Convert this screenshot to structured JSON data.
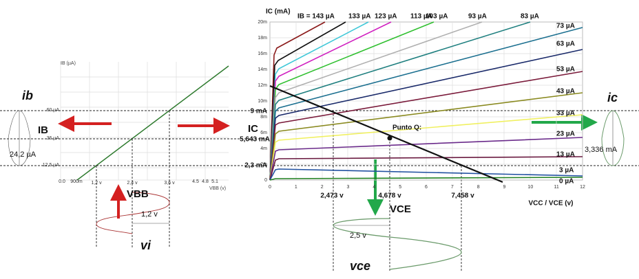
{
  "input_graph": {
    "y_axis_label": "IB (µA)",
    "x_axis_label": "VBB (v)",
    "x_ticks": [
      "0.0",
      "900m",
      "1,2 v",
      "2,4 v",
      "3,6 v",
      "4.5",
      "4.8",
      "5.1"
    ],
    "y_levels": [
      "60 µA",
      "36 µA",
      "12,5 µA"
    ]
  },
  "input_annotations": {
    "ib": "ib",
    "IB": "IB",
    "ib_amplitude": "24,2 µA",
    "VBB": "VBB",
    "vi_amplitude": "1,2 v",
    "vi": "vi"
  },
  "output_graph": {
    "y_axis_label": "IC (mA)",
    "x_axis_label": "VCC / VCE (v)",
    "y_ticks": [
      "20m",
      "18m",
      "16m",
      "14m",
      "12m",
      "10m",
      "8m",
      "6m",
      "4m",
      "2m",
      "0"
    ],
    "x_ticks": [
      "0",
      "1",
      "2",
      "3",
      "4",
      "5",
      "6",
      "7",
      "8",
      "9",
      "10",
      "11",
      "12"
    ],
    "top_curve_labels": [
      "IB = 143 µA",
      "133 µA",
      "123 µA",
      "113 µA",
      "103 µA",
      "93 µA",
      "83 µA"
    ],
    "side_curve_labels": [
      "73 µA",
      "63 µA",
      "53 µA",
      "43 µA",
      "33 µA",
      "23 µA",
      "13 µA",
      "3 µA",
      "0 µA"
    ],
    "q_point": "Punto Q:"
  },
  "output_annotations": {
    "ic_max": "9 mA",
    "IC": "IC",
    "ic_q": "5,643 mA",
    "ic_min": "2,3 mA",
    "vce_min": "2,473 v",
    "vce_q": "4,678 v",
    "vce_max": "7,458 v",
    "VCE": "VCE",
    "vce_amplitude": "2,5 v",
    "vce": "vce",
    "ic": "ic",
    "ic_amplitude": "3,336 mA"
  }
}
